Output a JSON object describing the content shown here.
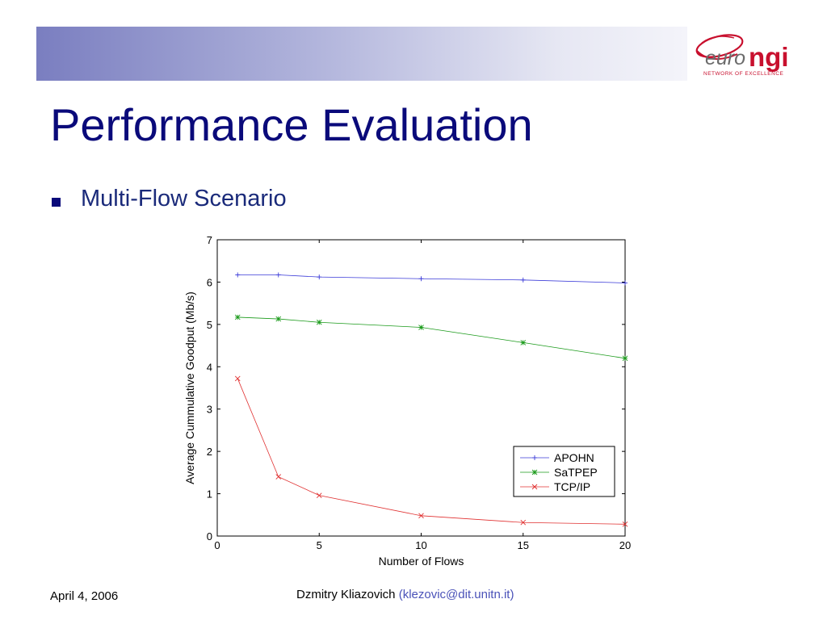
{
  "slide": {
    "title": "Performance Evaluation",
    "bullet": "Multi-Flow Scenario"
  },
  "logo": {
    "word_euro": "euro",
    "word_ngi": "ngi",
    "tagline": "NETWORK OF EXCELLENCE",
    "brand_color": "#c8102e"
  },
  "footer": {
    "date": "April 4, 2006",
    "author": "Dzmitry Kliazovich",
    "email": "(klezovic@dit.unitn.it)"
  },
  "colors": {
    "title": "#0a0a7a",
    "bullet_text": "#1a2a7a",
    "email": "#4a52b8",
    "header_gradient_start": "#7a7ec0",
    "header_gradient_end": "#f4f4fa"
  },
  "chart_data": {
    "type": "line",
    "xlabel": "Number of Flows",
    "ylabel": "Average Cummulative Goodput (Mb/s)",
    "xlim": [
      0,
      20
    ],
    "ylim": [
      0,
      7
    ],
    "xticks": [
      0,
      5,
      10,
      15,
      20
    ],
    "yticks": [
      0,
      1,
      2,
      3,
      4,
      5,
      6,
      7
    ],
    "grid": false,
    "legend_position": "bottom-right",
    "x": [
      1,
      3,
      5,
      10,
      15,
      20
    ],
    "series": [
      {
        "name": "APOHN",
        "marker": "+",
        "color": "#3a3ad8",
        "values": [
          6.17,
          6.17,
          6.12,
          6.08,
          6.05,
          5.98
        ]
      },
      {
        "name": "SaTPEP",
        "marker": "*",
        "color": "#1a9a1a",
        "values": [
          5.17,
          5.13,
          5.05,
          4.93,
          4.57,
          4.2
        ]
      },
      {
        "name": "TCP/IP",
        "marker": "x",
        "color": "#e03030",
        "values": [
          3.72,
          1.4,
          0.96,
          0.48,
          0.32,
          0.28
        ]
      }
    ]
  }
}
